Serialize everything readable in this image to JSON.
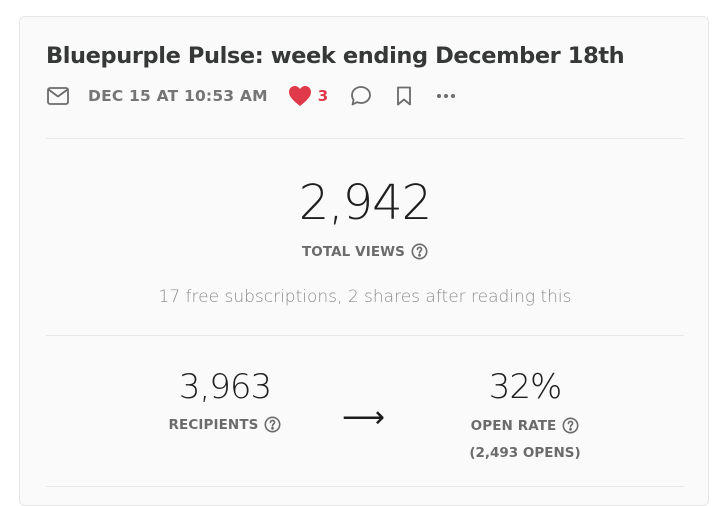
{
  "post": {
    "title": "Bluepurple Pulse: week ending December 18th",
    "date": "DEC 15 AT 10:53 AM",
    "like_count": "3"
  },
  "icons": {
    "mail": "mail-icon",
    "like": "heart-icon",
    "comment": "comment-icon",
    "bookmark": "bookmark-icon",
    "more": "more-icon",
    "help": "help-circle-icon",
    "arrow": "arrow-right-icon"
  },
  "colors": {
    "heart": "#e0394a",
    "text": "#363737",
    "muted": "#757575"
  },
  "stats": {
    "total_views": "2,942",
    "total_views_label": "TOTAL VIEWS",
    "engagement_text": "17 free subscriptions, 2 shares after reading this",
    "recipients": "3,963",
    "recipients_label": "RECIPIENTS",
    "arrow": "⟶",
    "open_rate": "32%",
    "open_rate_label": "OPEN RATE",
    "opens": "(2,493 OPENS)"
  }
}
